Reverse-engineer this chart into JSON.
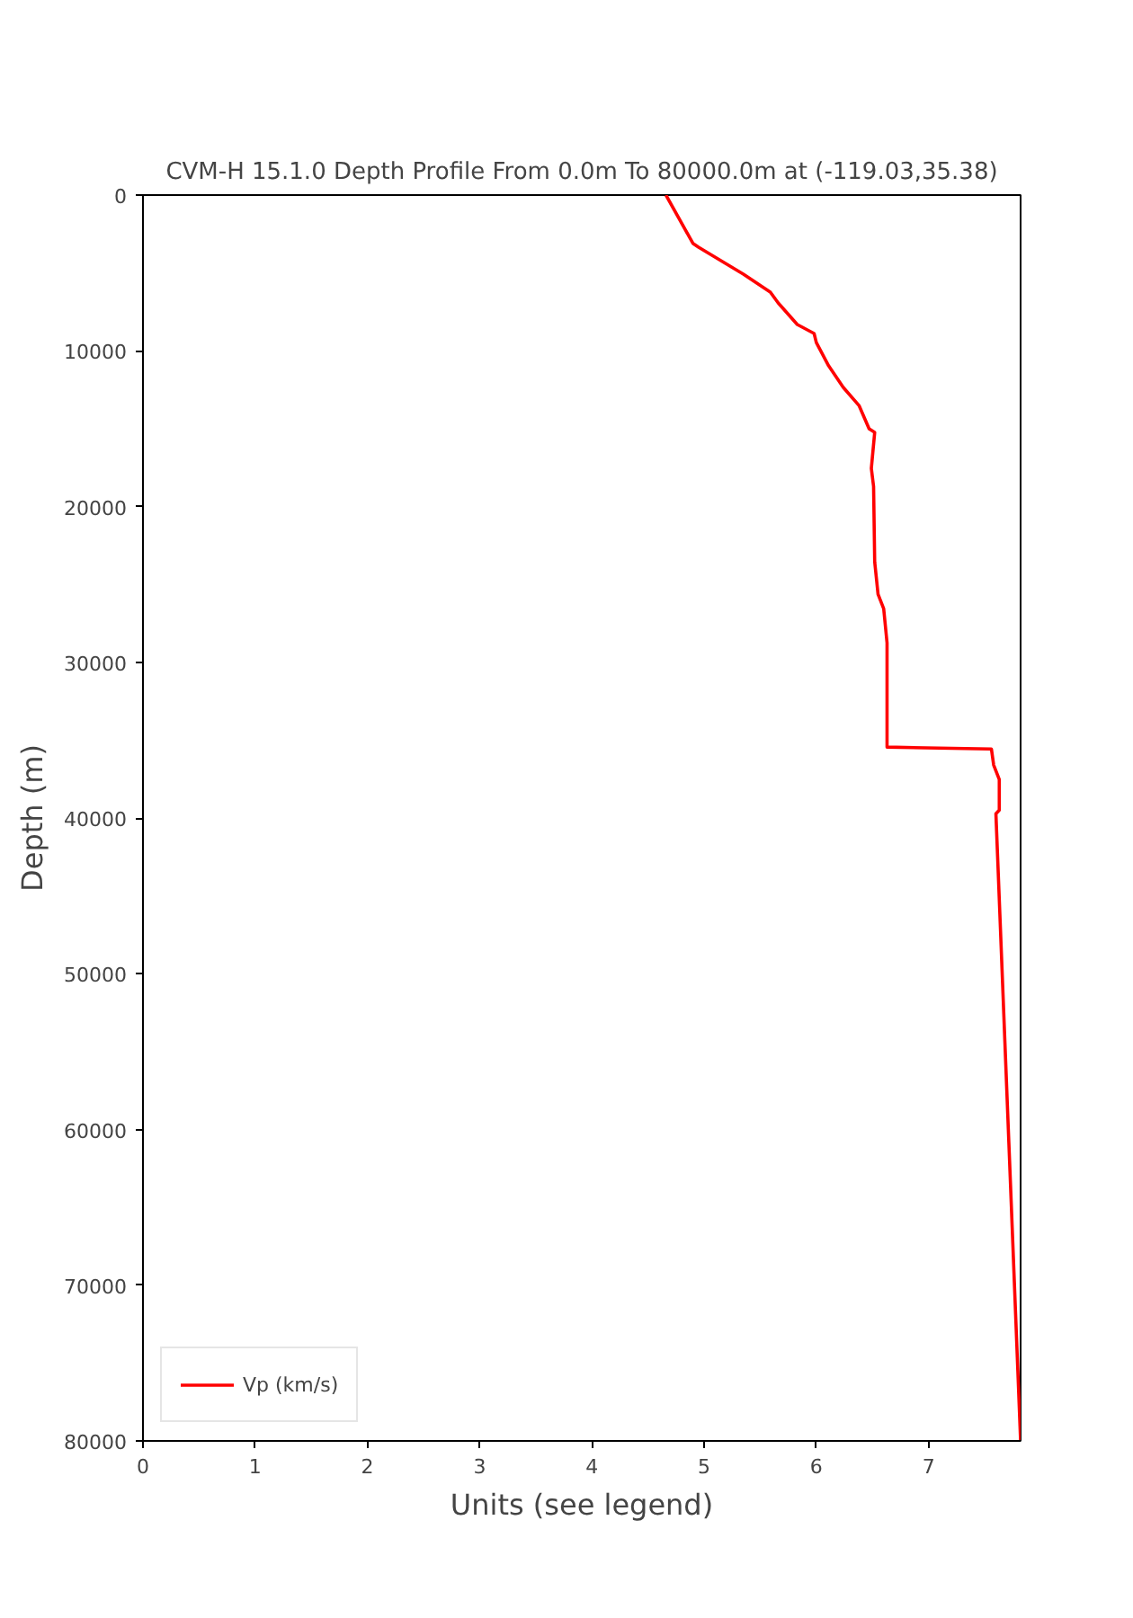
{
  "chart_data": {
    "type": "line",
    "title": "CVM-H 15.1.0 Depth Profile From 0.0m To 80000.0m at (-119.03,35.38)",
    "xlabel": "Units (see legend)",
    "ylabel": "Depth (m)",
    "series": [
      {
        "name": "Vp (km/s)",
        "color": "#ff0000",
        "x": [
          4.66,
          4.9,
          4.95,
          5.35,
          5.59,
          5.66,
          5.83,
          5.98,
          6.0,
          6.11,
          6.24,
          6.38,
          6.47,
          6.52,
          6.49,
          6.51,
          6.52,
          6.55,
          6.6,
          6.63,
          6.63,
          7.56,
          7.58,
          7.63,
          7.63,
          7.6,
          7.82
        ],
        "values": [
          0,
          3100,
          3350,
          5080,
          6230,
          6930,
          8310,
          8890,
          9470,
          10970,
          12350,
          13510,
          15010,
          15240,
          17550,
          18710,
          23560,
          25640,
          26560,
          28750,
          35450,
          35570,
          36600,
          37530,
          39490,
          39720,
          80000
        ]
      }
    ],
    "xlim": [
      0,
      7.82
    ],
    "ylim": [
      80000,
      0
    ],
    "xticks": [
      0,
      1,
      2,
      3,
      4,
      5,
      6,
      7
    ],
    "yticks": [
      0,
      10000,
      20000,
      30000,
      40000,
      50000,
      60000,
      70000,
      80000
    ],
    "legend": "bottom left",
    "grid": false
  }
}
